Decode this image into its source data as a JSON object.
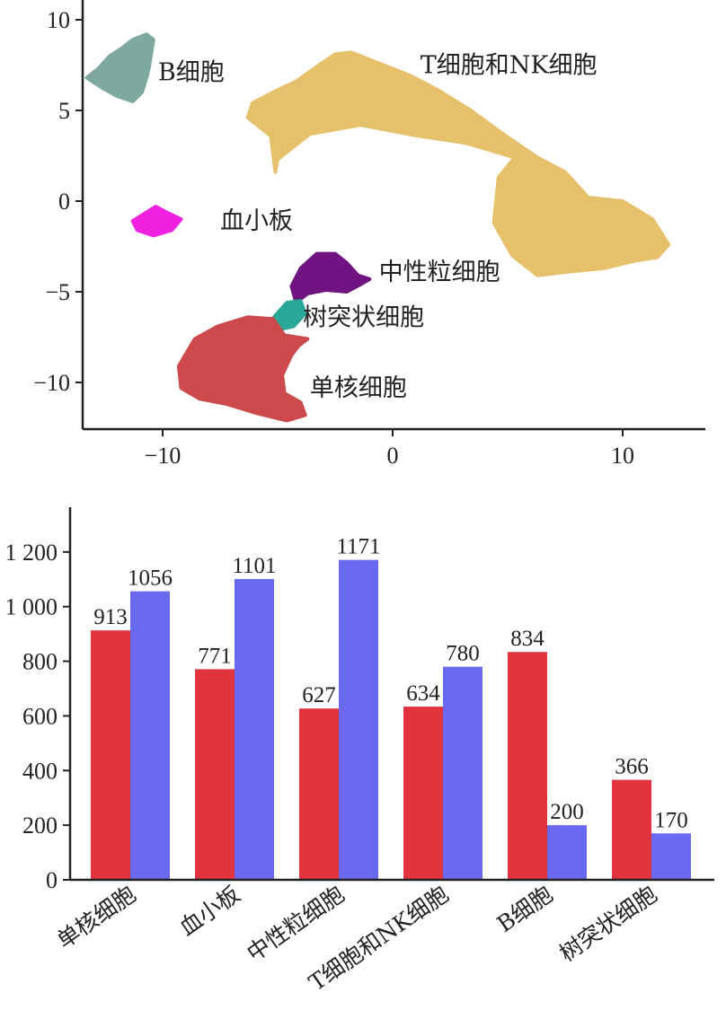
{
  "chart_data": [
    {
      "type": "scatter",
      "title": "",
      "xlabel": "",
      "ylabel": "",
      "xlim": [
        -14,
        14
      ],
      "ylim": [
        -12.5,
        10.5
      ],
      "xticks": [
        {
          "v": -10,
          "label": "−10"
        },
        {
          "v": 0,
          "label": "0"
        },
        {
          "v": 10,
          "label": "10"
        }
      ],
      "yticks": [
        {
          "v": 10,
          "label": "10"
        },
        {
          "v": 5,
          "label": "5"
        },
        {
          "v": 0,
          "label": "0"
        },
        {
          "v": -5,
          "label": "−5"
        },
        {
          "v": -10,
          "label": "−10"
        }
      ],
      "grid": false,
      "clusters": [
        {
          "name": "B细胞",
          "color": "#7fa89e",
          "label_pos": [
            -10.2,
            7.1
          ],
          "outline": [
            [
              -12.8,
              7.3
            ],
            [
              -12.3,
              8.0
            ],
            [
              -11.8,
              8.4
            ],
            [
              -11.3,
              8.9
            ],
            [
              -10.7,
              9.2
            ],
            [
              -10.4,
              8.9
            ],
            [
              -10.5,
              8.1
            ],
            [
              -10.6,
              7.3
            ],
            [
              -10.7,
              6.8
            ],
            [
              -10.9,
              6.0
            ],
            [
              -11.3,
              5.5
            ],
            [
              -12.0,
              5.8
            ],
            [
              -12.7,
              6.3
            ],
            [
              -13.3,
              6.8
            ]
          ]
        },
        {
          "name": "T细胞和NK细胞",
          "color": "#e6c06a",
          "label_pos": [
            1.2,
            7.5
          ],
          "outline": [
            [
              -6.1,
              5.4
            ],
            [
              -5.2,
              6.0
            ],
            [
              -4.2,
              6.6
            ],
            [
              -3.2,
              7.5
            ],
            [
              -2.5,
              8.1
            ],
            [
              -1.8,
              8.2
            ],
            [
              -0.6,
              7.6
            ],
            [
              0.8,
              6.9
            ],
            [
              2.0,
              6.1
            ],
            [
              3.4,
              5.0
            ],
            [
              4.8,
              3.7
            ],
            [
              6.3,
              2.4
            ],
            [
              7.5,
              1.6
            ],
            [
              8.5,
              0.2
            ],
            [
              10.0,
              0.0
            ],
            [
              11.3,
              -1.0
            ],
            [
              12.0,
              -2.4
            ],
            [
              11.5,
              -3.1
            ],
            [
              10.5,
              -3.3
            ],
            [
              9.2,
              -3.7
            ],
            [
              7.6,
              -3.9
            ],
            [
              6.3,
              -4.1
            ],
            [
              5.2,
              -3.0
            ],
            [
              4.4,
              -1.2
            ],
            [
              4.6,
              1.3
            ],
            [
              5.3,
              2.4
            ],
            [
              3.2,
              3.2
            ],
            [
              1.1,
              3.6
            ],
            [
              -1.4,
              4.2
            ],
            [
              -3.6,
              3.7
            ],
            [
              -5.0,
              2.3
            ],
            [
              -5.1,
              1.6
            ],
            [
              -5.3,
              3.6
            ],
            [
              -6.3,
              4.6
            ]
          ]
        },
        {
          "name": "血小板",
          "color": "#f020e0",
          "label_pos": [
            -7.5,
            -1.1
          ],
          "outline": [
            [
              -11.3,
              -1.1
            ],
            [
              -10.3,
              -0.3
            ],
            [
              -9.7,
              -0.7
            ],
            [
              -9.2,
              -1.0
            ],
            [
              -9.6,
              -1.6
            ],
            [
              -10.4,
              -1.9
            ],
            [
              -11.1,
              -1.6
            ]
          ]
        },
        {
          "name": "中性粒细胞",
          "color": "#6f1480",
          "label_pos": [
            -0.6,
            -3.9
          ],
          "outline": [
            [
              -4.4,
              -4.7
            ],
            [
              -4.0,
              -3.7
            ],
            [
              -3.3,
              -2.9
            ],
            [
              -2.5,
              -2.9
            ],
            [
              -2.0,
              -3.4
            ],
            [
              -1.5,
              -4.1
            ],
            [
              -1.0,
              -4.3
            ],
            [
              -1.4,
              -4.6
            ],
            [
              -2.0,
              -5.0
            ],
            [
              -2.9,
              -4.9
            ],
            [
              -3.7,
              -5.1
            ],
            [
              -4.2,
              -5.6
            ]
          ]
        },
        {
          "name": "树突状细胞",
          "color": "#2aa897",
          "label_pos": [
            -3.9,
            -6.4
          ],
          "outline": [
            [
              -5.3,
              -6.6
            ],
            [
              -4.6,
              -5.6
            ],
            [
              -4.0,
              -5.5
            ],
            [
              -3.8,
              -6.2
            ],
            [
              -4.3,
              -6.9
            ],
            [
              -5.0,
              -7.1
            ]
          ]
        },
        {
          "name": "单核细胞",
          "color": "#cc4a4c",
          "label_pos": [
            -3.6,
            -10.3
          ],
          "outline": [
            [
              -9.3,
              -9.1
            ],
            [
              -8.6,
              -7.6
            ],
            [
              -7.6,
              -6.9
            ],
            [
              -6.3,
              -6.4
            ],
            [
              -5.2,
              -6.5
            ],
            [
              -4.7,
              -7.4
            ],
            [
              -3.7,
              -7.6
            ],
            [
              -4.1,
              -8.0
            ],
            [
              -4.4,
              -8.5
            ],
            [
              -4.8,
              -9.6
            ],
            [
              -4.7,
              -10.6
            ],
            [
              -4.0,
              -11.1
            ],
            [
              -3.8,
              -11.8
            ],
            [
              -4.6,
              -12.1
            ],
            [
              -5.9,
              -11.7
            ],
            [
              -7.2,
              -11.2
            ],
            [
              -8.4,
              -10.9
            ],
            [
              -9.2,
              -10.3
            ]
          ]
        }
      ]
    },
    {
      "type": "bar",
      "title": "",
      "xlabel": "",
      "ylabel": "",
      "ylim": [
        0,
        1300
      ],
      "yticks": [
        {
          "v": 0,
          "label": "0"
        },
        {
          "v": 200,
          "label": "200"
        },
        {
          "v": 400,
          "label": "400"
        },
        {
          "v": 600,
          "label": "600"
        },
        {
          "v": 800,
          "label": "800"
        },
        {
          "v": 1000,
          "label": "1 000"
        },
        {
          "v": 1200,
          "label": "1 200"
        }
      ],
      "categories": [
        "单核细胞",
        "血小板",
        "中性粒细胞",
        "T细胞和NK细胞",
        "B细胞",
        "树突状细胞"
      ],
      "series": [
        {
          "color": "#e2343f",
          "values": [
            913,
            771,
            627,
            634,
            834,
            366
          ]
        },
        {
          "color": "#6b68f0",
          "values": [
            1056,
            1101,
            1171,
            780,
            200,
            170
          ]
        }
      ],
      "grid": false
    }
  ]
}
